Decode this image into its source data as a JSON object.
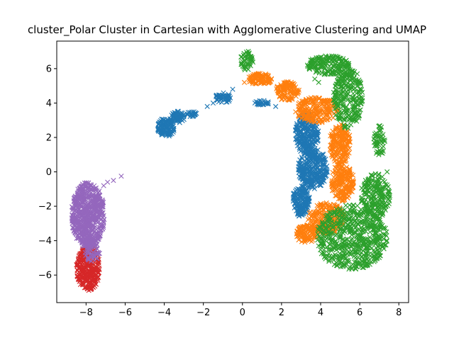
{
  "chart_data": {
    "type": "scatter",
    "title": "cluster_Polar Cluster in Cartesian with Agglomerative Clustering and UMAP",
    "xlabel": "",
    "ylabel": "",
    "xlim": [
      -9.5,
      8.5
    ],
    "ylim": [
      -7.6,
      7.6
    ],
    "x_ticks": [
      -8,
      -6,
      -4,
      -2,
      0,
      2,
      4,
      6,
      8
    ],
    "y_ticks": [
      -6,
      -4,
      -2,
      0,
      2,
      4,
      6
    ],
    "x_tick_labels": [
      "−8",
      "−6",
      "−4",
      "−2",
      "0",
      "2",
      "4",
      "6",
      "8"
    ],
    "y_tick_labels": [
      "−6",
      "−4",
      "−2",
      "0",
      "2",
      "4",
      "6"
    ],
    "grid": false,
    "legend": "none",
    "marker": "x",
    "colors": [
      "#1f77b4",
      "#ff7f0e",
      "#2ca02c",
      "#d62728",
      "#9467bd"
    ],
    "clusters": [
      {
        "color": "#1f77b4",
        "regions": [
          {
            "kind": "ellipse",
            "cx": -3.9,
            "cy": 2.6,
            "rx": 0.45,
            "ry": 0.55,
            "n": 120
          },
          {
            "kind": "ellipse",
            "cx": -3.3,
            "cy": 3.2,
            "rx": 0.35,
            "ry": 0.35,
            "n": 60
          },
          {
            "kind": "ellipse",
            "cx": -2.6,
            "cy": 3.35,
            "rx": 0.3,
            "ry": 0.15,
            "n": 25
          },
          {
            "kind": "ellipse",
            "cx": -1.0,
            "cy": 4.3,
            "rx": 0.4,
            "ry": 0.3,
            "n": 45
          },
          {
            "kind": "ellipse",
            "cx": 1.0,
            "cy": 4.0,
            "rx": 0.4,
            "ry": 0.15,
            "n": 25
          },
          {
            "kind": "ellipse",
            "cx": 3.3,
            "cy": 2.2,
            "rx": 0.6,
            "ry": 1.2,
            "n": 250
          },
          {
            "kind": "ellipse",
            "cx": 3.6,
            "cy": 0.2,
            "rx": 0.75,
            "ry": 1.2,
            "n": 300
          },
          {
            "kind": "ellipse",
            "cx": 3.0,
            "cy": -1.7,
            "rx": 0.45,
            "ry": 0.9,
            "n": 160
          }
        ],
        "outliers": [
          [
            -1.5,
            4.0
          ],
          [
            -0.5,
            4.8
          ],
          [
            -1.8,
            3.8
          ],
          [
            1.7,
            3.8
          ]
        ]
      },
      {
        "color": "#ff7f0e",
        "regions": [
          {
            "kind": "ellipse",
            "cx": 0.9,
            "cy": 5.4,
            "rx": 0.6,
            "ry": 0.35,
            "n": 90
          },
          {
            "kind": "ellipse",
            "cx": 2.3,
            "cy": 4.7,
            "rx": 0.6,
            "ry": 0.55,
            "n": 110
          },
          {
            "kind": "ellipse",
            "cx": 3.8,
            "cy": 3.6,
            "rx": 1.1,
            "ry": 0.75,
            "n": 220
          },
          {
            "kind": "ellipse",
            "cx": 5.0,
            "cy": 1.6,
            "rx": 0.55,
            "ry": 1.2,
            "n": 200
          },
          {
            "kind": "ellipse",
            "cx": 5.1,
            "cy": -0.6,
            "rx": 0.6,
            "ry": 1.1,
            "n": 200
          },
          {
            "kind": "ellipse",
            "cx": 4.3,
            "cy": -2.7,
            "rx": 0.95,
            "ry": 0.9,
            "n": 220
          },
          {
            "kind": "ellipse",
            "cx": 3.3,
            "cy": -3.6,
            "rx": 0.55,
            "ry": 0.55,
            "n": 100
          }
        ],
        "outliers": [
          [
            0.1,
            5.2
          ],
          [
            2.0,
            4.2
          ]
        ]
      },
      {
        "color": "#2ca02c",
        "regions": [
          {
            "kind": "ellipse",
            "cx": 0.2,
            "cy": 6.5,
            "rx": 0.35,
            "ry": 0.6,
            "n": 50
          },
          {
            "kind": "ellipse",
            "cx": 4.4,
            "cy": 6.2,
            "rx": 1.1,
            "ry": 0.55,
            "n": 180
          },
          {
            "kind": "ellipse",
            "cx": 5.4,
            "cy": 4.3,
            "rx": 0.75,
            "ry": 1.8,
            "n": 260
          },
          {
            "kind": "ellipse",
            "cx": 7.0,
            "cy": 1.8,
            "rx": 0.3,
            "ry": 0.9,
            "n": 50
          },
          {
            "kind": "ellipse",
            "cx": 6.8,
            "cy": -1.4,
            "rx": 0.75,
            "ry": 1.3,
            "n": 220
          },
          {
            "kind": "ellipse",
            "cx": 5.6,
            "cy": -3.8,
            "rx": 1.8,
            "ry": 1.9,
            "n": 600
          }
        ],
        "outliers": [
          [
            3.7,
            5.4
          ],
          [
            7.4,
            0.0
          ],
          [
            7.2,
            1.2
          ],
          [
            3.9,
            5.2
          ]
        ]
      },
      {
        "color": "#d62728",
        "regions": [
          {
            "kind": "ellipse",
            "cx": -7.9,
            "cy": -5.6,
            "rx": 0.6,
            "ry": 1.3,
            "n": 300
          }
        ],
        "outliers": [
          [
            -8.4,
            -5.1
          ],
          [
            -7.4,
            -6.3
          ]
        ]
      },
      {
        "color": "#9467bd",
        "regions": [
          {
            "kind": "ellipse",
            "cx": -7.9,
            "cy": -2.5,
            "rx": 0.85,
            "ry": 1.9,
            "n": 650
          },
          {
            "kind": "ellipse",
            "cx": -7.7,
            "cy": -4.6,
            "rx": 0.4,
            "ry": 0.6,
            "n": 60
          }
        ],
        "outliers": [
          [
            -6.9,
            -0.6
          ],
          [
            -6.6,
            -0.5
          ],
          [
            -6.2,
            -0.25
          ],
          [
            -7.1,
            -0.8
          ]
        ]
      }
    ]
  }
}
